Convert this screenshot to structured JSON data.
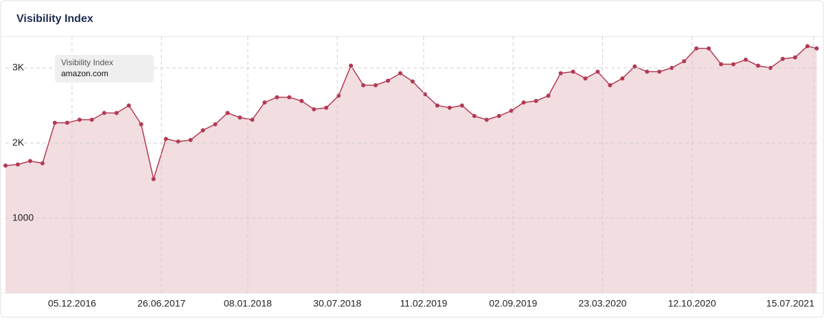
{
  "chart_data": {
    "type": "area",
    "title": "Visibility Index",
    "legend_title": "Visibility Index",
    "x": [
      "2016-07-07",
      "2016-08-04",
      "2016-09-01",
      "2016-09-29",
      "2016-10-27",
      "2016-11-24",
      "2016-12-22",
      "2017-01-19",
      "2017-02-16",
      "2017-03-16",
      "2017-04-13",
      "2017-05-11",
      "2017-06-08",
      "2017-07-06",
      "2017-08-03",
      "2017-08-31",
      "2017-09-28",
      "2017-10-26",
      "2017-11-23",
      "2017-12-21",
      "2018-01-18",
      "2018-02-15",
      "2018-03-15",
      "2018-04-12",
      "2018-05-10",
      "2018-06-07",
      "2018-07-05",
      "2018-08-02",
      "2018-08-30",
      "2018-09-27",
      "2018-10-25",
      "2018-11-22",
      "2018-12-20",
      "2019-01-17",
      "2019-02-14",
      "2019-03-14",
      "2019-04-11",
      "2019-05-09",
      "2019-06-06",
      "2019-07-04",
      "2019-08-01",
      "2019-08-29",
      "2019-09-26",
      "2019-10-24",
      "2019-11-21",
      "2019-12-19",
      "2020-01-16",
      "2020-02-13",
      "2020-03-12",
      "2020-04-09",
      "2020-05-07",
      "2020-06-04",
      "2020-07-02",
      "2020-07-30",
      "2020-08-27",
      "2020-09-24",
      "2020-10-22",
      "2020-11-19",
      "2020-12-17",
      "2021-01-14",
      "2021-02-11",
      "2021-03-11",
      "2021-04-08",
      "2021-05-06",
      "2021-06-03",
      "2021-07-01",
      "2021-07-22"
    ],
    "series": [
      {
        "name": "amazon.com",
        "color": "#b23a52",
        "fill": "#f2dde1",
        "values": [
          1700,
          1715,
          1760,
          1730,
          2270,
          2270,
          2310,
          2310,
          2400,
          2400,
          2500,
          2250,
          1520,
          2055,
          2020,
          2040,
          2170,
          2250,
          2400,
          2340,
          2310,
          2540,
          2610,
          2610,
          2560,
          2450,
          2470,
          2630,
          3030,
          2770,
          2770,
          2830,
          2930,
          2820,
          2650,
          2500,
          2470,
          2500,
          2360,
          2310,
          2360,
          2430,
          2540,
          2560,
          2630,
          2930,
          2950,
          2860,
          2950,
          2770,
          2860,
          3020,
          2950,
          2950,
          3000,
          3090,
          3260,
          3260,
          3050,
          3050,
          3110,
          3030,
          3000,
          3120,
          3140,
          3290,
          3260
        ]
      }
    ],
    "xlim": [
      "2016-07-07",
      "2021-07-23"
    ],
    "xticks": [
      {
        "value": "2016-12-05",
        "label": "05.12.2016"
      },
      {
        "value": "2017-06-26",
        "label": "26.06.2017"
      },
      {
        "value": "2018-01-08",
        "label": "08.01.2018"
      },
      {
        "value": "2018-07-30",
        "label": "30.07.2018"
      },
      {
        "value": "2019-02-11",
        "label": "11.02.2019"
      },
      {
        "value": "2019-09-02",
        "label": "02.09.2019"
      },
      {
        "value": "2020-03-23",
        "label": "23.03.2020"
      },
      {
        "value": "2020-10-12",
        "label": "12.10.2020"
      },
      {
        "value": "2021-07-15",
        "label": "15.07.2021"
      }
    ],
    "ylim": [
      0,
      3420
    ],
    "yticks": [
      1000,
      {
        "value": 2000,
        "label": "2K"
      },
      {
        "value": 3000,
        "label": "3K"
      }
    ],
    "grid": true
  }
}
